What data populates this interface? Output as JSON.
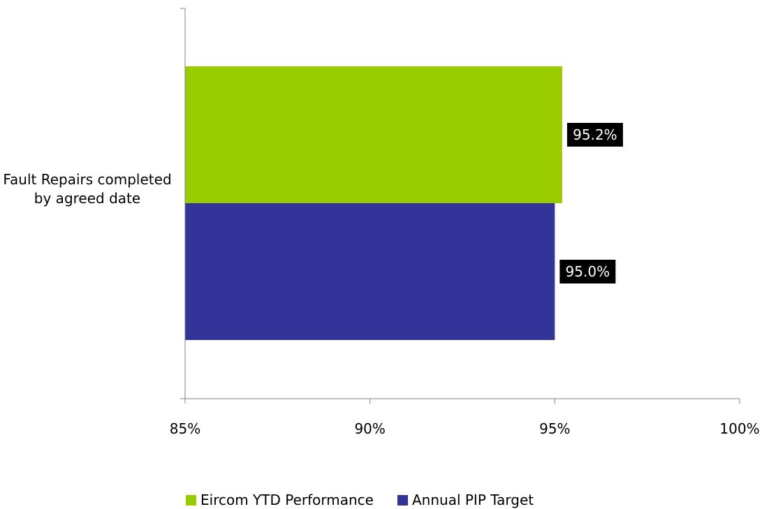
{
  "chart_data": {
    "type": "bar",
    "orientation": "horizontal",
    "categories": [
      "Fault Repairs completed by agreed date"
    ],
    "series": [
      {
        "name": "Eircom YTD Performance",
        "values": [
          95.2
        ],
        "color": "#99cc00",
        "label": "95.2%"
      },
      {
        "name": "Annual PIP Target",
        "values": [
          95.0
        ],
        "color": "#333399",
        "label": "95.0%"
      }
    ],
    "xlim": [
      85,
      100
    ],
    "xticks": [
      85,
      90,
      95,
      100
    ],
    "xtick_labels": [
      "85%",
      "90%",
      "95%",
      "100%"
    ],
    "title": "",
    "xlabel": "",
    "ylabel": "",
    "grid": false,
    "legend_position": "bottom",
    "data_label_style": {
      "background": "#000000",
      "color": "#ffffff"
    }
  }
}
